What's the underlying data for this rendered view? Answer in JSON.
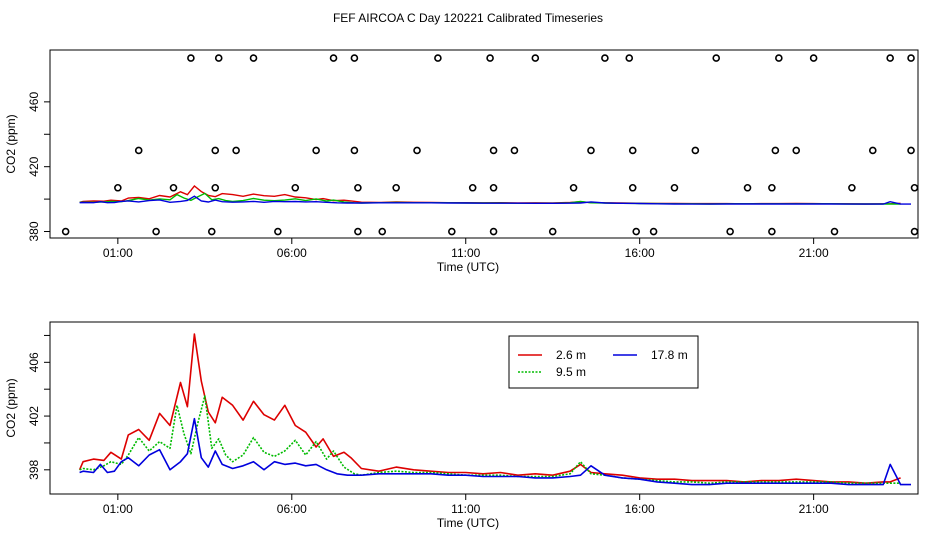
{
  "page": {
    "title": "FEF AIRCOA C  Day 120221  Calibrated Timeseries"
  },
  "chart_data": [
    {
      "type": "scatter",
      "ylabel": "CO2 (ppm)",
      "xlabel": "Time (UTC)",
      "xlim": [
        -0.95,
        24.0
      ],
      "ylim": [
        376,
        492
      ],
      "x_ticks": [
        1,
        6,
        11,
        16,
        21
      ],
      "x_tick_labels": [
        "01:00",
        "06:00",
        "11:00",
        "16:00",
        "21:00"
      ],
      "y_ticks": [
        380,
        420,
        460
      ],
      "y_tick_labels": [
        "380",
        "420",
        "460"
      ],
      "line_y_ticks": [
        400,
        440
      ],
      "flag_points": {
        "x": [
          -0.5,
          1.0,
          1.6,
          2.1,
          2.6,
          3.1,
          3.8,
          3.7,
          3.8,
          3.9,
          4.4,
          4.9,
          5.6,
          6.1,
          6.7,
          7.2,
          7.8,
          7.8,
          7.9,
          7.9,
          8.6,
          9.0,
          9.6,
          10.2,
          10.6,
          11.2,
          11.7,
          11.8,
          11.8,
          11.8,
          12.4,
          13.0,
          13.5,
          14.1,
          14.6,
          15.0,
          15.7,
          15.8,
          15.8,
          15.9,
          16.4,
          17.0,
          17.6,
          18.2,
          18.6,
          19.1,
          19.8,
          19.8,
          19.9,
          20.0,
          20.5,
          21.0,
          21.6,
          22.1,
          22.7,
          23.2,
          23.8,
          23.8,
          23.9,
          23.9
        ],
        "y": [
          380,
          407,
          430,
          380,
          407,
          487,
          407,
          380,
          430,
          487,
          430,
          487,
          380,
          407,
          430,
          487,
          430,
          487,
          407,
          380,
          380,
          407,
          430,
          487,
          380,
          407,
          487,
          430,
          407,
          380,
          430,
          487,
          380,
          407,
          430,
          487,
          487,
          430,
          407,
          380,
          380,
          407,
          430,
          487,
          380,
          407,
          380,
          407,
          430,
          487,
          430,
          487,
          380,
          407,
          430,
          487,
          487,
          430,
          407,
          380
        ]
      },
      "series": [
        {
          "name": "2.6 m",
          "color": "#dd0000"
        },
        {
          "name": "9.5 m",
          "color": "#00bb00"
        },
        {
          "name": "17.8 m",
          "color": "#0000dd"
        }
      ]
    },
    {
      "type": "line",
      "ylabel": "CO2 (ppm)",
      "xlabel": "Time (UTC)",
      "xlim": [
        -0.95,
        24.0
      ],
      "ylim": [
        396.2,
        409.0
      ],
      "x_ticks": [
        1,
        6,
        11,
        16,
        21
      ],
      "x_tick_labels": [
        "01:00",
        "06:00",
        "11:00",
        "16:00",
        "21:00"
      ],
      "y_ticks": [
        398,
        402,
        406
      ],
      "y_tick_labels": [
        "398",
        "402",
        "406"
      ],
      "line_y_ticks": [
        400,
        404,
        408
      ],
      "legend": {
        "position": "top-center",
        "entries": [
          "2.6 m",
          "17.8 m",
          "9.5 m"
        ]
      },
      "series": [
        {
          "name": "2.6 m",
          "color": "#dd0000",
          "x": [
            -0.1,
            0.0,
            0.3,
            0.6,
            0.8,
            1.1,
            1.3,
            1.6,
            1.9,
            2.2,
            2.5,
            2.8,
            3.0,
            3.2,
            3.4,
            3.6,
            3.8,
            4.0,
            4.3,
            4.6,
            4.9,
            5.2,
            5.5,
            5.8,
            6.1,
            6.4,
            6.7,
            6.9,
            7.2,
            7.5,
            7.7,
            8.0,
            8.5,
            9.0,
            9.5,
            10.0,
            10.5,
            11.0,
            11.5,
            12.0,
            12.5,
            13.0,
            13.5,
            14.0,
            14.3,
            14.6,
            15.0,
            15.5,
            16.0,
            16.5,
            17.0,
            17.5,
            18.0,
            18.5,
            19.0,
            19.5,
            20.0,
            20.5,
            21.0,
            21.5,
            22.0,
            22.5,
            23.0,
            23.2,
            23.5
          ],
          "y": [
            398.0,
            398.6,
            398.8,
            398.7,
            399.3,
            398.8,
            400.6,
            401.0,
            400.2,
            402.2,
            401.3,
            404.5,
            402.7,
            408.1,
            404.6,
            402.3,
            401.5,
            403.4,
            402.8,
            401.7,
            403.1,
            402.1,
            401.7,
            402.8,
            401.3,
            400.8,
            399.7,
            400.3,
            399.0,
            399.3,
            398.9,
            398.1,
            397.9,
            398.2,
            398.0,
            397.9,
            397.8,
            397.8,
            397.7,
            397.8,
            397.6,
            397.7,
            397.6,
            397.9,
            398.4,
            397.8,
            397.7,
            397.6,
            397.4,
            397.3,
            397.3,
            397.2,
            397.2,
            397.2,
            397.1,
            397.2,
            397.2,
            397.3,
            397.2,
            397.1,
            397.1,
            397.0,
            397.1,
            397.1,
            397.4
          ]
        },
        {
          "name": "9.5 m",
          "color": "#00bb00",
          "x": [
            -0.1,
            0.0,
            0.3,
            0.6,
            0.8,
            1.1,
            1.3,
            1.6,
            1.9,
            2.2,
            2.5,
            2.7,
            2.9,
            3.1,
            3.3,
            3.5,
            3.7,
            3.9,
            4.1,
            4.3,
            4.6,
            4.9,
            5.2,
            5.5,
            5.8,
            6.1,
            6.4,
            6.7,
            7.0,
            7.2,
            7.5,
            7.8,
            8.0,
            8.5,
            9.0,
            9.5,
            10.0,
            10.5,
            11.0,
            11.5,
            12.0,
            12.5,
            13.0,
            13.5,
            14.0,
            14.3,
            14.6,
            15.0,
            15.5,
            16.0,
            16.5,
            17.0,
            17.5,
            18.0,
            18.5,
            19.0,
            19.5,
            20.0,
            20.5,
            21.0,
            21.5,
            22.0,
            22.5,
            23.0,
            23.2,
            23.5
          ],
          "y": [
            398.0,
            398.1,
            398.0,
            398.3,
            398.6,
            398.4,
            399.1,
            400.4,
            399.4,
            400.1,
            399.6,
            402.8,
            400.7,
            399.2,
            401.5,
            403.5,
            399.6,
            400.3,
            399.1,
            398.6,
            399.1,
            400.4,
            399.3,
            399.0,
            399.4,
            400.2,
            399.1,
            400.1,
            398.8,
            399.4,
            398.2,
            397.7,
            397.6,
            397.8,
            397.9,
            397.8,
            397.8,
            397.7,
            397.6,
            397.6,
            397.6,
            397.5,
            397.5,
            397.5,
            397.7,
            398.6,
            397.7,
            397.6,
            397.4,
            397.3,
            397.2,
            397.1,
            397.1,
            397.0,
            397.1,
            397.1,
            397.1,
            397.1,
            397.1,
            397.1,
            397.1,
            397.0,
            397.0,
            397.0,
            397.0,
            397.0
          ]
        },
        {
          "name": "17.8 m",
          "color": "#0000dd",
          "x": [
            -0.1,
            0.0,
            0.3,
            0.5,
            0.7,
            0.9,
            1.1,
            1.3,
            1.6,
            1.9,
            2.2,
            2.5,
            2.8,
            3.0,
            3.2,
            3.4,
            3.6,
            3.8,
            4.0,
            4.3,
            4.6,
            4.9,
            5.2,
            5.5,
            5.8,
            6.1,
            6.4,
            6.7,
            7.0,
            7.3,
            7.6,
            8.0,
            8.5,
            9.0,
            9.5,
            10.0,
            10.5,
            11.0,
            11.5,
            12.0,
            12.5,
            13.0,
            13.5,
            14.0,
            14.3,
            14.6,
            15.0,
            15.5,
            16.0,
            16.5,
            17.0,
            17.5,
            18.0,
            18.5,
            19.0,
            19.5,
            20.0,
            20.5,
            21.0,
            21.5,
            22.0,
            22.5,
            23.0,
            23.2,
            23.5,
            23.8
          ],
          "y": [
            397.8,
            397.9,
            397.8,
            398.4,
            397.8,
            397.9,
            398.6,
            398.9,
            398.3,
            399.1,
            399.5,
            398.0,
            398.6,
            399.2,
            401.8,
            398.9,
            398.2,
            399.4,
            398.4,
            398.1,
            398.3,
            398.6,
            398.0,
            398.6,
            398.4,
            398.5,
            398.3,
            398.4,
            398.0,
            397.7,
            397.6,
            397.6,
            397.7,
            397.7,
            397.7,
            397.7,
            397.6,
            397.6,
            397.5,
            397.5,
            397.5,
            397.4,
            397.4,
            397.5,
            397.6,
            398.3,
            397.6,
            397.4,
            397.3,
            397.1,
            397.0,
            396.9,
            396.9,
            397.0,
            397.0,
            397.0,
            397.0,
            397.0,
            397.0,
            397.0,
            396.9,
            396.9,
            396.9,
            398.4,
            396.9,
            396.9
          ]
        }
      ]
    }
  ]
}
